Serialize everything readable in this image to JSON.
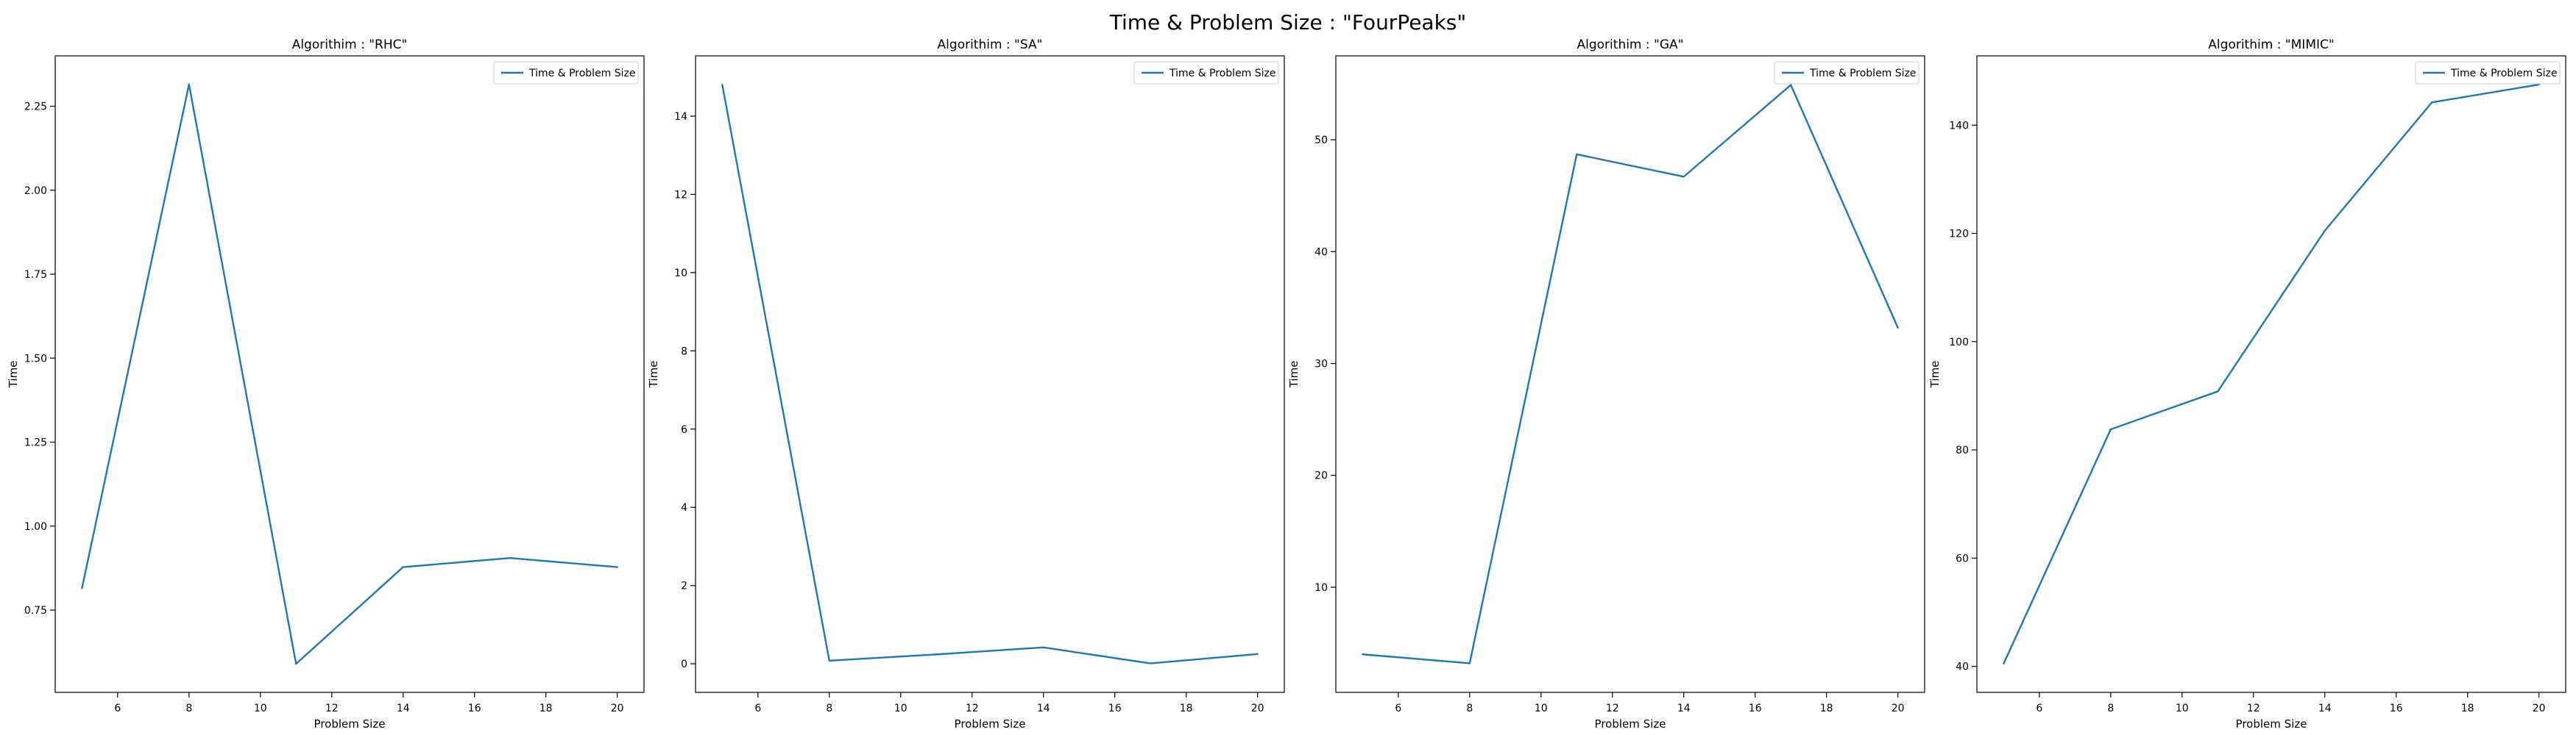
{
  "figure": {
    "title": "Time & Problem Size : \"FourPeaks\""
  },
  "colors": {
    "line": "#1f77b4",
    "axis": "#000000",
    "background": "#ffffff"
  },
  "chart_data": [
    {
      "type": "line",
      "title": "Algorithim : \"RHC\"",
      "xlabel": "Problem Size",
      "ylabel": "Time",
      "x": [
        5,
        8,
        11,
        14,
        17,
        20
      ],
      "series": [
        {
          "name": "Time & Problem Size",
          "values": [
            0.815,
            2.315,
            0.59,
            0.878,
            0.905,
            0.878
          ]
        }
      ],
      "xlim": [
        4.25,
        20.75
      ],
      "ylim": [
        0.505,
        2.4
      ],
      "xticks": [
        6,
        8,
        10,
        12,
        14,
        16,
        18,
        20
      ],
      "yticks": [
        0.75,
        1.0,
        1.25,
        1.5,
        1.75,
        2.0,
        2.25
      ],
      "ytick_labels": [
        "0.75",
        "1.00",
        "1.25",
        "1.50",
        "1.75",
        "2.00",
        "2.25"
      ],
      "legend": "top-right",
      "grid": false
    },
    {
      "type": "line",
      "title": "Algorithim : \"SA\"",
      "xlabel": "Problem Size",
      "ylabel": "Time",
      "x": [
        5,
        8,
        11,
        14,
        17,
        20
      ],
      "series": [
        {
          "name": "Time & Problem Size",
          "values": [
            14.8,
            0.08,
            0.24,
            0.42,
            0.01,
            0.25
          ]
        }
      ],
      "xlim": [
        4.25,
        20.75
      ],
      "ylim": [
        -0.73,
        15.54
      ],
      "xticks": [
        6,
        8,
        10,
        12,
        14,
        16,
        18,
        20
      ],
      "yticks": [
        0,
        2,
        4,
        6,
        8,
        10,
        12,
        14
      ],
      "ytick_labels": [
        "0",
        "2",
        "4",
        "6",
        "8",
        "10",
        "12",
        "14"
      ],
      "legend": "top-right",
      "grid": false
    },
    {
      "type": "line",
      "title": "Algorithim : \"GA\"",
      "xlabel": "Problem Size",
      "ylabel": "Time",
      "x": [
        5,
        8,
        11,
        14,
        17,
        20
      ],
      "series": [
        {
          "name": "Time & Problem Size",
          "values": [
            4.0,
            3.2,
            48.7,
            46.7,
            54.9,
            33.2
          ]
        }
      ],
      "xlim": [
        4.25,
        20.75
      ],
      "ylim": [
        0.6,
        57.5
      ],
      "xticks": [
        6,
        8,
        10,
        12,
        14,
        16,
        18,
        20
      ],
      "yticks": [
        10,
        20,
        30,
        40,
        50
      ],
      "ytick_labels": [
        "10",
        "20",
        "30",
        "40",
        "50"
      ],
      "legend": "top-right",
      "grid": false
    },
    {
      "type": "line",
      "title": "Algorithim : \"MIMIC\"",
      "xlabel": "Problem Size",
      "ylabel": "Time",
      "x": [
        5,
        8,
        11,
        14,
        17,
        20
      ],
      "series": [
        {
          "name": "Time & Problem Size",
          "values": [
            40.5,
            83.8,
            90.8,
            120.5,
            144.2,
            147.5
          ]
        }
      ],
      "xlim": [
        4.25,
        20.75
      ],
      "ylim": [
        35.2,
        152.8
      ],
      "xticks": [
        6,
        8,
        10,
        12,
        14,
        16,
        18,
        20
      ],
      "yticks": [
        40,
        60,
        80,
        100,
        120,
        140
      ],
      "ytick_labels": [
        "40",
        "60",
        "80",
        "100",
        "120",
        "140"
      ],
      "legend": "top-right",
      "grid": false
    }
  ]
}
